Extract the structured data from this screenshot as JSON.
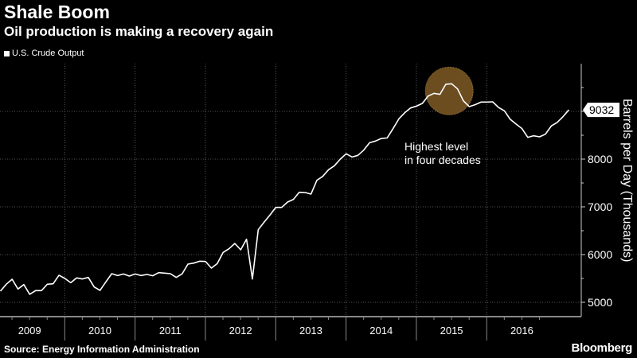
{
  "header": {
    "title": "Shale Boom",
    "subtitle": "Oil production is making a recovery again",
    "legend_label": "U.S. Crude Output"
  },
  "footer": {
    "source": "Source: Energy Information Administration",
    "brand": "Bloomberg"
  },
  "colors": {
    "line": "#ffffff",
    "highlight": "#6b4d20",
    "background": "#000000"
  },
  "chart_data": {
    "type": "line",
    "title": "Shale Boom",
    "subtitle": "Oil production is making a recovery again",
    "ylabel": "Barrels per Day (Thousands)",
    "xlabel": "",
    "frequency": "monthly, starting Jan 2009",
    "ylim": [
      4700,
      10000
    ],
    "yticks": [
      5000,
      6000,
      7000,
      8000,
      9000
    ],
    "ytick_labels": [
      "5000",
      "6000",
      "7000",
      "8000",
      ""
    ],
    "x_tick_labels": [
      "2009",
      "2010",
      "2011",
      "2012",
      "2013",
      "2014",
      "2015",
      "2016"
    ],
    "grid": true,
    "legend": "top-left",
    "last_value_label": "9032",
    "annotation": {
      "text_line1": "Highest level",
      "text_line2": "in four decades",
      "highlight_month_index": 77
    },
    "series": [
      {
        "name": "U.S. Crude Output",
        "values": [
          5233,
          5378,
          5483,
          5278,
          5372,
          5167,
          5244,
          5244,
          5378,
          5389,
          5567,
          5500,
          5411,
          5511,
          5489,
          5522,
          5322,
          5250,
          5428,
          5600,
          5561,
          5594,
          5550,
          5594,
          5561,
          5583,
          5556,
          5622,
          5611,
          5600,
          5522,
          5594,
          5800,
          5822,
          5861,
          5856,
          5717,
          5811,
          6044,
          6122,
          6233,
          6100,
          6322,
          5489,
          6522,
          6680,
          6830,
          6989,
          6989,
          7100,
          7156,
          7306,
          7300,
          7267,
          7556,
          7639,
          7778,
          7861,
          8000,
          8111,
          8044,
          8078,
          8189,
          8344,
          8378,
          8433,
          8444,
          8639,
          8844,
          8972,
          9072,
          9111,
          9167,
          9322,
          9378,
          9356,
          9567,
          9578,
          9472,
          9222,
          9100,
          9139,
          9194,
          9194,
          9200,
          9083,
          9011,
          8833,
          8733,
          8639,
          8456,
          8489,
          8467,
          8522,
          8694,
          8767,
          8889,
          9032
        ]
      }
    ]
  }
}
